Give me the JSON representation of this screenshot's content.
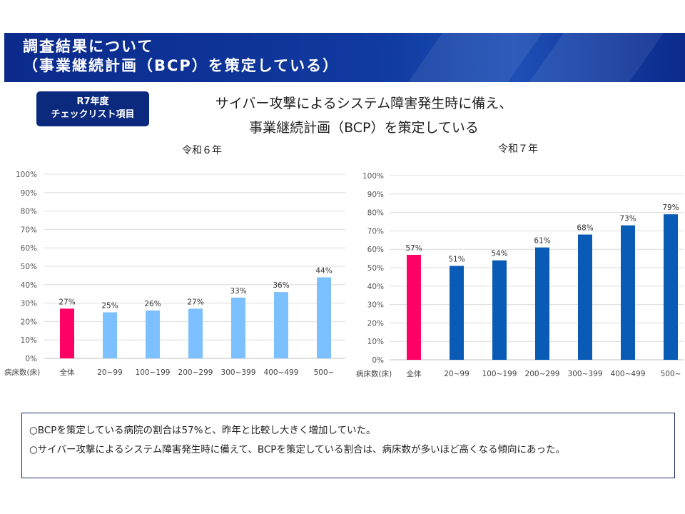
{
  "header": {
    "title_line1": "調査結果について",
    "title_line2": "（事業継続計画（BCP）を策定している）"
  },
  "badge": {
    "line1": "R7年度",
    "line2": "チェックリスト項目"
  },
  "subtitle": {
    "line1": "サイバー攻撃によるシステム障害発生時に備え、",
    "line2": "事業継続計画（BCP）を策定している"
  },
  "colors": {
    "highlight": "#ff0066",
    "r6_bar": "#7dc0ff",
    "r7_bar": "#0a5bb5",
    "header": "#0b2a8c"
  },
  "chart_data": [
    {
      "type": "bar",
      "title": "令和６年",
      "xlabel": "病床数(床)",
      "ylim": [
        0,
        100
      ],
      "yticks": [
        "0%",
        "10%",
        "20%",
        "30%",
        "40%",
        "50%",
        "60%",
        "70%",
        "80%",
        "90%",
        "100%"
      ],
      "categories": [
        "全体",
        "20~99",
        "100~199",
        "200~299",
        "300~399",
        "400~499",
        "500~"
      ],
      "values": [
        27,
        25,
        26,
        27,
        33,
        36,
        44
      ],
      "value_labels": [
        "27%",
        "25%",
        "26%",
        "27%",
        "33%",
        "36%",
        "44%"
      ],
      "grid": true
    },
    {
      "type": "bar",
      "title": "令和７年",
      "xlabel": "病床数(床)",
      "ylim": [
        0,
        100
      ],
      "yticks": [
        "0%",
        "10%",
        "20%",
        "30%",
        "40%",
        "50%",
        "60%",
        "70%",
        "80%",
        "90%",
        "100%"
      ],
      "categories": [
        "全体",
        "20~99",
        "100~199",
        "200~299",
        "300~399",
        "400~499",
        "500~"
      ],
      "values": [
        57,
        51,
        54,
        61,
        68,
        73,
        79
      ],
      "value_labels": [
        "57%",
        "51%",
        "54%",
        "61%",
        "68%",
        "73%",
        "79%"
      ],
      "grid": true
    }
  ],
  "notes": [
    "○BCPを策定している病院の割合は57%と、昨年と比較し大きく増加していた。",
    "○サイバー攻撃によるシステム障害発生時に備えて、BCPを策定している割合は、病床数が多いほど高くなる傾向にあった。"
  ]
}
